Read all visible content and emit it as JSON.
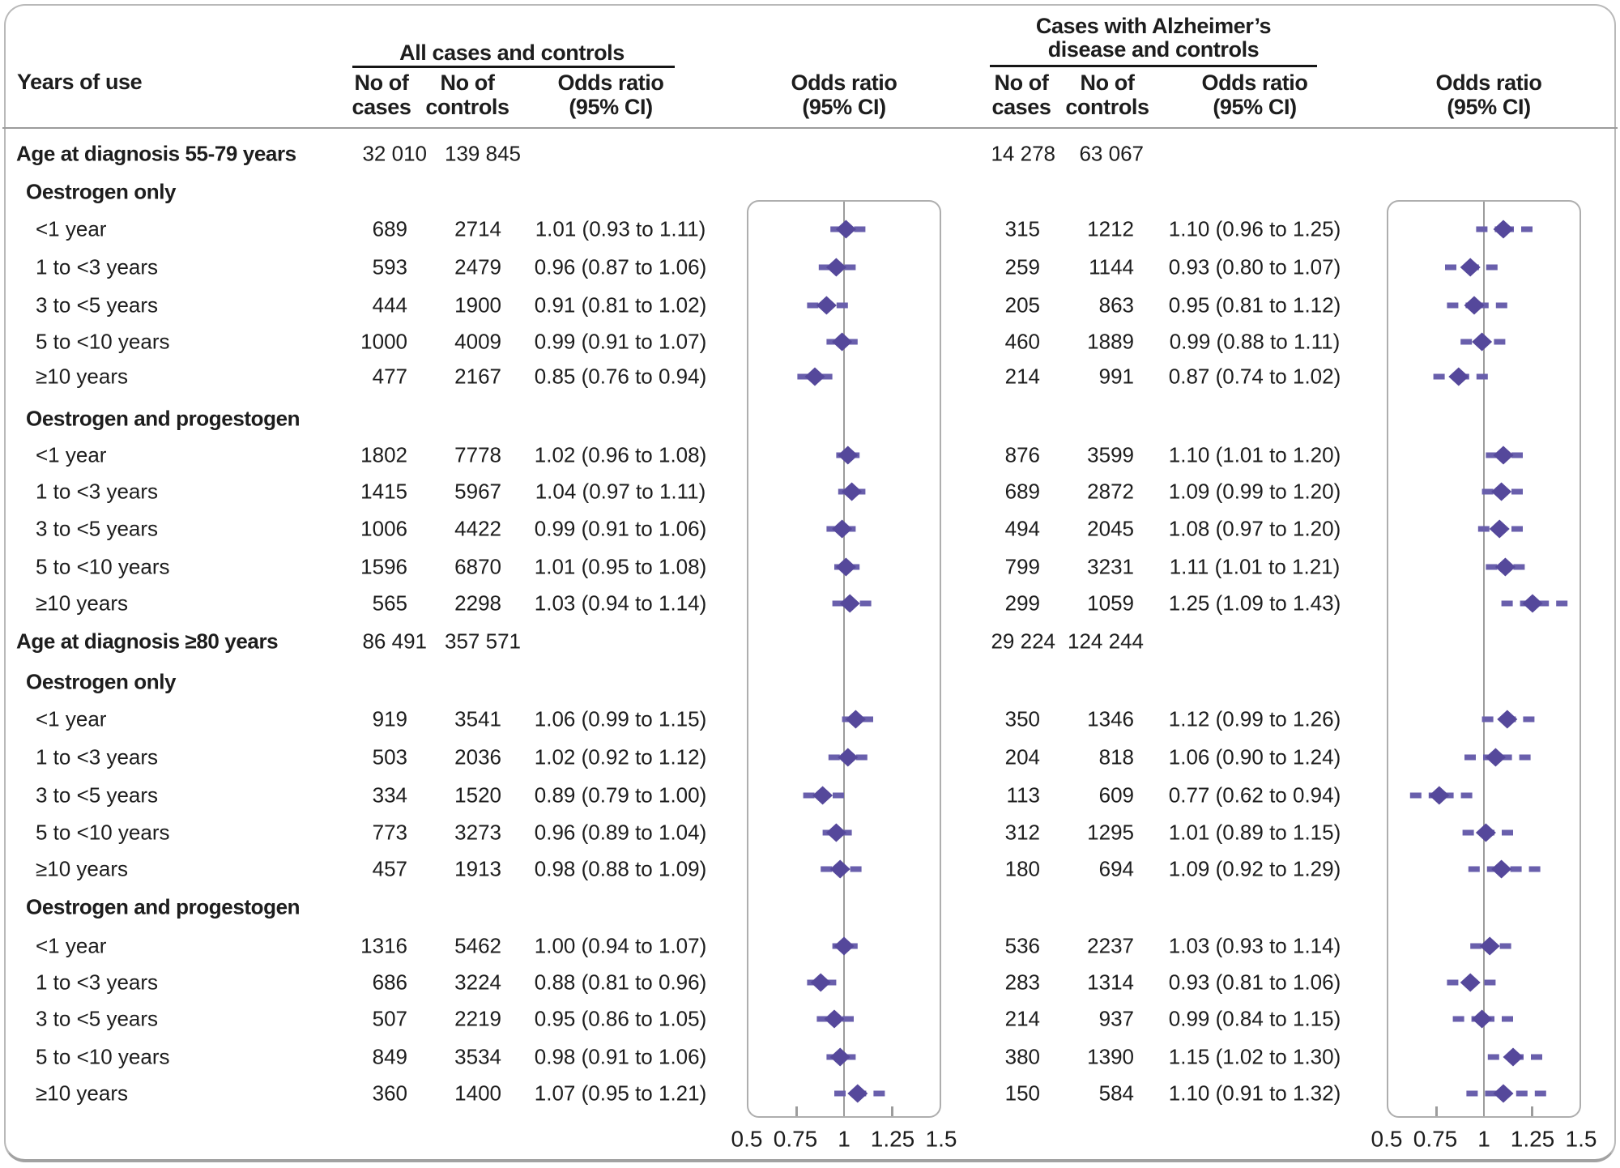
{
  "header": {
    "years_of_use": "Years of use",
    "left_group_title": "All cases and controls",
    "right_group_title_line1": "Cases with Alzheimer’s",
    "right_group_title_line2": "disease and controls",
    "no_of": "No of",
    "cases": "cases",
    "controls": "controls",
    "odds_ratio": "Odds ratio",
    "ci": "(95% CI)"
  },
  "axis_ticks": [
    "0.5",
    "0.75",
    "1",
    "1.25",
    "1.5"
  ],
  "colors": {
    "diamond": "#55489b",
    "ci_line": "#695fac",
    "reference_line": "#9c9c9c",
    "plot_border": "#aeaeae",
    "text": "#1d1d1d"
  },
  "chart_data": {
    "type": "forest",
    "xlabel": "Odds ratio (95% CI)",
    "xlim": [
      0.5,
      1.5
    ],
    "x_ticks": [
      0.5,
      0.75,
      1,
      1.25,
      1.5
    ],
    "reference_line": 1,
    "grid": false,
    "panels": [
      {
        "name": "All cases and controls"
      },
      {
        "name": "Cases with Alzheimer’s disease and controls"
      }
    ],
    "rows": [
      {
        "kind": "group",
        "label": "Age at diagnosis 55-79 years",
        "left_cases": "32 010",
        "left_controls": "139 845",
        "right_cases": "14 278",
        "right_controls": "63 067"
      },
      {
        "kind": "subgroup",
        "label": "Oestrogen only"
      },
      {
        "kind": "data",
        "label": "<1 year",
        "left": {
          "cases": "689",
          "controls": "2714",
          "or_text": "1.01 (0.93 to 1.11)",
          "or": 1.01,
          "lo": 0.93,
          "hi": 1.11
        },
        "right": {
          "cases": "315",
          "controls": "1212",
          "or_text": "1.10 (0.96 to 1.25)",
          "or": 1.1,
          "lo": 0.96,
          "hi": 1.25
        }
      },
      {
        "kind": "data",
        "label": "1 to <3 years",
        "left": {
          "cases": "593",
          "controls": "2479",
          "or_text": "0.96 (0.87 to 1.06)",
          "or": 0.96,
          "lo": 0.87,
          "hi": 1.06
        },
        "right": {
          "cases": "259",
          "controls": "1144",
          "or_text": "0.93 (0.80 to 1.07)",
          "or": 0.93,
          "lo": 0.8,
          "hi": 1.07
        }
      },
      {
        "kind": "data",
        "label": "3 to <5 years",
        "left": {
          "cases": "444",
          "controls": "1900",
          "or_text": "0.91 (0.81 to 1.02)",
          "or": 0.91,
          "lo": 0.81,
          "hi": 1.02
        },
        "right": {
          "cases": "205",
          "controls": "863",
          "or_text": "0.95 (0.81 to 1.12)",
          "or": 0.95,
          "lo": 0.81,
          "hi": 1.12
        }
      },
      {
        "kind": "data",
        "label": "5 to <10 years",
        "left": {
          "cases": "1000",
          "controls": "4009",
          "or_text": "0.99 (0.91 to 1.07)",
          "or": 0.99,
          "lo": 0.91,
          "hi": 1.07
        },
        "right": {
          "cases": "460",
          "controls": "1889",
          "or_text": "0.99 (0.88 to 1.11)",
          "or": 0.99,
          "lo": 0.88,
          "hi": 1.11
        }
      },
      {
        "kind": "data",
        "label": "≥10 years",
        "left": {
          "cases": "477",
          "controls": "2167",
          "or_text": "0.85 (0.76 to 0.94)",
          "or": 0.85,
          "lo": 0.76,
          "hi": 0.94
        },
        "right": {
          "cases": "214",
          "controls": "991",
          "or_text": "0.87 (0.74 to 1.02)",
          "or": 0.87,
          "lo": 0.74,
          "hi": 1.02
        }
      },
      {
        "kind": "subgroup",
        "label": "Oestrogen and progestogen"
      },
      {
        "kind": "data",
        "label": "<1 year",
        "left": {
          "cases": "1802",
          "controls": "7778",
          "or_text": "1.02 (0.96 to 1.08)",
          "or": 1.02,
          "lo": 0.96,
          "hi": 1.08
        },
        "right": {
          "cases": "876",
          "controls": "3599",
          "or_text": "1.10 (1.01 to 1.20)",
          "or": 1.1,
          "lo": 1.01,
          "hi": 1.2
        }
      },
      {
        "kind": "data",
        "label": "1 to <3 years",
        "left": {
          "cases": "1415",
          "controls": "5967",
          "or_text": "1.04 (0.97 to 1.11)",
          "or": 1.04,
          "lo": 0.97,
          "hi": 1.11
        },
        "right": {
          "cases": "689",
          "controls": "2872",
          "or_text": "1.09 (0.99 to 1.20)",
          "or": 1.09,
          "lo": 0.99,
          "hi": 1.2
        }
      },
      {
        "kind": "data",
        "label": "3 to <5 years",
        "left": {
          "cases": "1006",
          "controls": "4422",
          "or_text": "0.99 (0.91 to 1.06)",
          "or": 0.99,
          "lo": 0.91,
          "hi": 1.06
        },
        "right": {
          "cases": "494",
          "controls": "2045",
          "or_text": "1.08 (0.97 to 1.20)",
          "or": 1.08,
          "lo": 0.97,
          "hi": 1.2
        }
      },
      {
        "kind": "data",
        "label": "5 to <10 years",
        "left": {
          "cases": "1596",
          "controls": "6870",
          "or_text": "1.01 (0.95 to 1.08)",
          "or": 1.01,
          "lo": 0.95,
          "hi": 1.08
        },
        "right": {
          "cases": "799",
          "controls": "3231",
          "or_text": "1.11 (1.01 to 1.21)",
          "or": 1.11,
          "lo": 1.01,
          "hi": 1.21
        }
      },
      {
        "kind": "data",
        "label": "≥10 years",
        "left": {
          "cases": "565",
          "controls": "2298",
          "or_text": "1.03 (0.94 to 1.14)",
          "or": 1.03,
          "lo": 0.94,
          "hi": 1.14
        },
        "right": {
          "cases": "299",
          "controls": "1059",
          "or_text": "1.25 (1.09 to 1.43)",
          "or": 1.25,
          "lo": 1.09,
          "hi": 1.43
        }
      },
      {
        "kind": "group",
        "label": "Age at diagnosis ≥80 years",
        "left_cases": "86 491",
        "left_controls": "357 571",
        "right_cases": "29 224",
        "right_controls": "124 244"
      },
      {
        "kind": "subgroup",
        "label": "Oestrogen only"
      },
      {
        "kind": "data",
        "label": "<1 year",
        "left": {
          "cases": "919",
          "controls": "3541",
          "or_text": "1.06 (0.99 to 1.15)",
          "or": 1.06,
          "lo": 0.99,
          "hi": 1.15
        },
        "right": {
          "cases": "350",
          "controls": "1346",
          "or_text": "1.12 (0.99 to 1.26)",
          "or": 1.12,
          "lo": 0.99,
          "hi": 1.26
        }
      },
      {
        "kind": "data",
        "label": "1 to <3 years",
        "left": {
          "cases": "503",
          "controls": "2036",
          "or_text": "1.02 (0.92 to 1.12)",
          "or": 1.02,
          "lo": 0.92,
          "hi": 1.12
        },
        "right": {
          "cases": "204",
          "controls": "818",
          "or_text": "1.06 (0.90 to 1.24)",
          "or": 1.06,
          "lo": 0.9,
          "hi": 1.24
        }
      },
      {
        "kind": "data",
        "label": "3 to <5 years",
        "left": {
          "cases": "334",
          "controls": "1520",
          "or_text": "0.89 (0.79 to 1.00)",
          "or": 0.89,
          "lo": 0.79,
          "hi": 1.0
        },
        "right": {
          "cases": "113",
          "controls": "609",
          "or_text": "0.77 (0.62 to 0.94)",
          "or": 0.77,
          "lo": 0.62,
          "hi": 0.94
        }
      },
      {
        "kind": "data",
        "label": "5 to <10 years",
        "left": {
          "cases": "773",
          "controls": "3273",
          "or_text": "0.96 (0.89 to 1.04)",
          "or": 0.96,
          "lo": 0.89,
          "hi": 1.04
        },
        "right": {
          "cases": "312",
          "controls": "1295",
          "or_text": "1.01 (0.89 to 1.15)",
          "or": 1.01,
          "lo": 0.89,
          "hi": 1.15
        }
      },
      {
        "kind": "data",
        "label": "≥10 years",
        "left": {
          "cases": "457",
          "controls": "1913",
          "or_text": "0.98 (0.88 to 1.09)",
          "or": 0.98,
          "lo": 0.88,
          "hi": 1.09
        },
        "right": {
          "cases": "180",
          "controls": "694",
          "or_text": "1.09 (0.92 to 1.29)",
          "or": 1.09,
          "lo": 0.92,
          "hi": 1.29
        }
      },
      {
        "kind": "subgroup",
        "label": "Oestrogen and progestogen"
      },
      {
        "kind": "data",
        "label": "<1 year",
        "left": {
          "cases": "1316",
          "controls": "5462",
          "or_text": "1.00 (0.94 to 1.07)",
          "or": 1.0,
          "lo": 0.94,
          "hi": 1.07
        },
        "right": {
          "cases": "536",
          "controls": "2237",
          "or_text": "1.03 (0.93 to 1.14)",
          "or": 1.03,
          "lo": 0.93,
          "hi": 1.14
        }
      },
      {
        "kind": "data",
        "label": "1 to <3 years",
        "left": {
          "cases": "686",
          "controls": "3224",
          "or_text": "0.88 (0.81 to 0.96)",
          "or": 0.88,
          "lo": 0.81,
          "hi": 0.96
        },
        "right": {
          "cases": "283",
          "controls": "1314",
          "or_text": "0.93 (0.81 to 1.06)",
          "or": 0.93,
          "lo": 0.81,
          "hi": 1.06
        }
      },
      {
        "kind": "data",
        "label": "3 to <5 years",
        "left": {
          "cases": "507",
          "controls": "2219",
          "or_text": "0.95 (0.86 to 1.05)",
          "or": 0.95,
          "lo": 0.86,
          "hi": 1.05
        },
        "right": {
          "cases": "214",
          "controls": "937",
          "or_text": "0.99 (0.84 to 1.15)",
          "or": 0.99,
          "lo": 0.84,
          "hi": 1.15
        }
      },
      {
        "kind": "data",
        "label": "5 to <10 years",
        "left": {
          "cases": "849",
          "controls": "3534",
          "or_text": "0.98 (0.91 to 1.06)",
          "or": 0.98,
          "lo": 0.91,
          "hi": 1.06
        },
        "right": {
          "cases": "380",
          "controls": "1390",
          "or_text": "1.15 (1.02 to 1.30)",
          "or": 1.15,
          "lo": 1.02,
          "hi": 1.3
        }
      },
      {
        "kind": "data",
        "label": "≥10 years",
        "left": {
          "cases": "360",
          "controls": "1400",
          "or_text": "1.07 (0.95 to 1.21)",
          "or": 1.07,
          "lo": 0.95,
          "hi": 1.21
        },
        "right": {
          "cases": "150",
          "controls": "584",
          "or_text": "1.10 (0.91 to 1.32)",
          "or": 1.1,
          "lo": 0.91,
          "hi": 1.32
        }
      }
    ]
  }
}
